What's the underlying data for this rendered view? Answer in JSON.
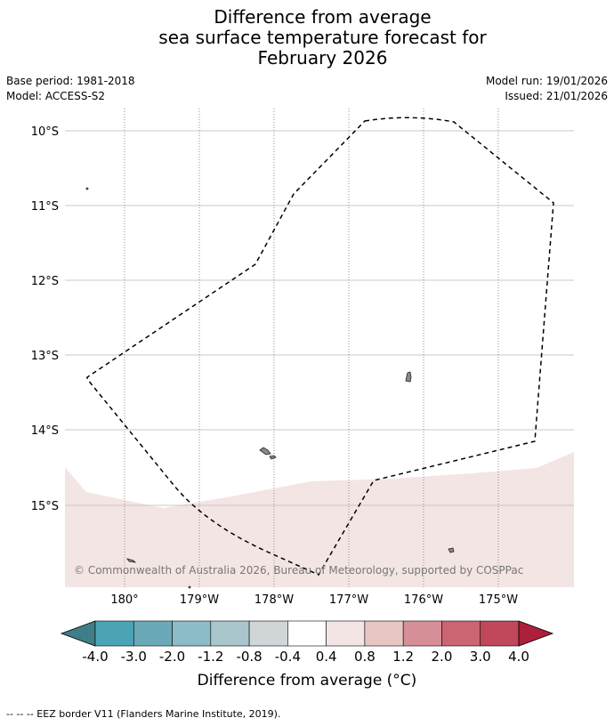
{
  "title": {
    "line1": "Difference from average",
    "line2": "sea surface temperature forecast for",
    "line3": "February 2026"
  },
  "meta": {
    "base_period": "Base period: 1981-2018",
    "model": "Model: ACCESS-S2",
    "model_run": "Model run: 19/01/2026",
    "issued": "Issued: 21/01/2026"
  },
  "map": {
    "lat_labels": [
      "10°S",
      "11°S",
      "12°S",
      "13°S",
      "14°S",
      "15°S"
    ],
    "lon_labels": [
      "180°",
      "179°W",
      "178°W",
      "177°W",
      "176°W",
      "175°W"
    ],
    "copyright": "© Commonwealth of Australia 2026, Bureau of Meteorology, supported by COSPPac",
    "anomaly_fill_color": "#f4e5e5",
    "eez_line_color": "#000000"
  },
  "colorbar": {
    "ticks": [
      "-4.0",
      "-3.0",
      "-2.0",
      "-1.2",
      "-0.8",
      "-0.4",
      "0.4",
      "0.8",
      "1.2",
      "2.0",
      "3.0",
      "4.0"
    ],
    "colors": [
      "#3f7e87",
      "#4aa4b6",
      "#6aaab8",
      "#8bbcc8",
      "#a8c6cc",
      "#d0d6d8",
      "#ffffff",
      "#f4e5e5",
      "#e8c6c4",
      "#d78f97",
      "#ca6571",
      "#c0485a",
      "#ae1f3c"
    ],
    "label": "Difference from average (°C)"
  },
  "footer": {
    "legend": "--  --  -- EEZ border V11 (Flanders Marine Institute, 2019)."
  }
}
